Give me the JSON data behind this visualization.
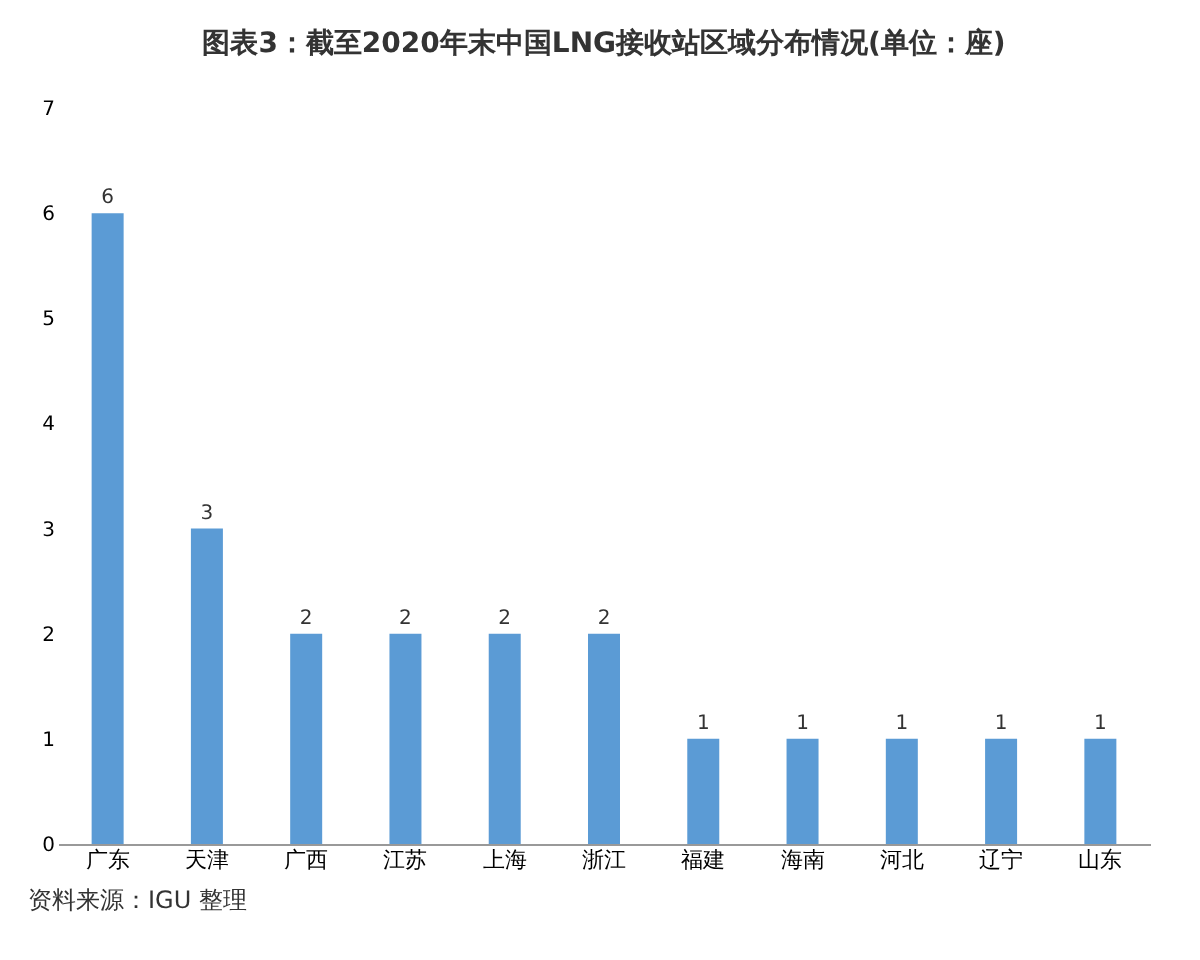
{
  "chart_data": {
    "type": "bar",
    "title": "图表3：截至2020年末中国LNG接收站区域分布情况(单位：座)",
    "categories": [
      "广东",
      "天津",
      "广西",
      "江苏",
      "上海",
      "浙江",
      "福建",
      "海南",
      "河北",
      "辽宁",
      "山东"
    ],
    "values": [
      6,
      3,
      2,
      2,
      2,
      2,
      1,
      1,
      1,
      1,
      1
    ],
    "color": "#5b9bd5",
    "ylim": [
      0,
      7
    ],
    "yticks": [
      0,
      1,
      2,
      3,
      4,
      5,
      6,
      7
    ],
    "data_labels": true,
    "annotations": [
      "资料来源：IGU 整理"
    ]
  }
}
